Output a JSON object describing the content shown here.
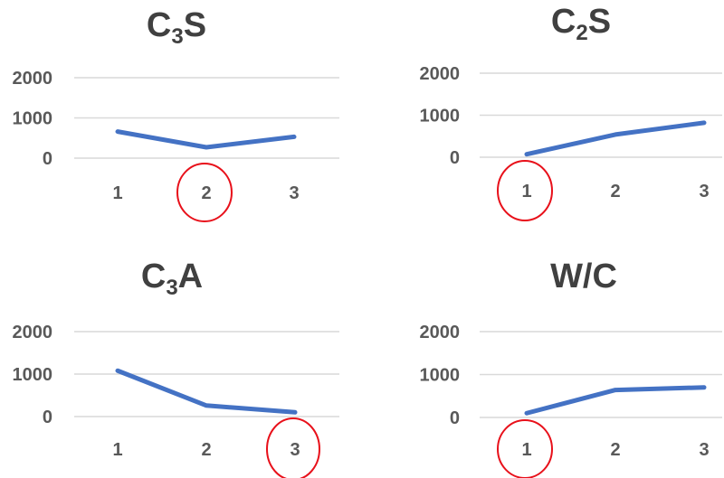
{
  "colors": {
    "series": "#4472c4",
    "marker": "#e8101a"
  },
  "chart_data": [
    {
      "type": "line",
      "title_main": "C",
      "title_sub": "3",
      "title_tail": "S",
      "categories": [
        "1",
        "2",
        "3"
      ],
      "values": [
        660,
        270,
        530
      ],
      "yticks": [
        "2000",
        "1000",
        "0"
      ],
      "ylim": [
        0,
        2000
      ],
      "grid": true,
      "highlight_index": 1
    },
    {
      "type": "line",
      "title_main": "C",
      "title_sub": "2",
      "title_tail": "S",
      "categories": [
        "1",
        "2",
        "3"
      ],
      "values": [
        70,
        540,
        820
      ],
      "yticks": [
        "2000",
        "1000",
        "0"
      ],
      "ylim": [
        0,
        2000
      ],
      "grid": true,
      "highlight_index": 0
    },
    {
      "type": "line",
      "title_main": "C",
      "title_sub": "3",
      "title_tail": "A",
      "categories": [
        "1",
        "2",
        "3"
      ],
      "values": [
        1080,
        260,
        100
      ],
      "yticks": [
        "2000",
        "1000",
        "0"
      ],
      "ylim": [
        0,
        2000
      ],
      "grid": true,
      "highlight_index": 2
    },
    {
      "type": "line",
      "title_main": "W/C",
      "title_sub": "",
      "title_tail": "",
      "categories": [
        "1",
        "2",
        "3"
      ],
      "values": [
        100,
        640,
        700
      ],
      "yticks": [
        "2000",
        "1000",
        "0"
      ],
      "ylim": [
        0,
        2000
      ],
      "grid": true,
      "highlight_index": 0
    }
  ]
}
